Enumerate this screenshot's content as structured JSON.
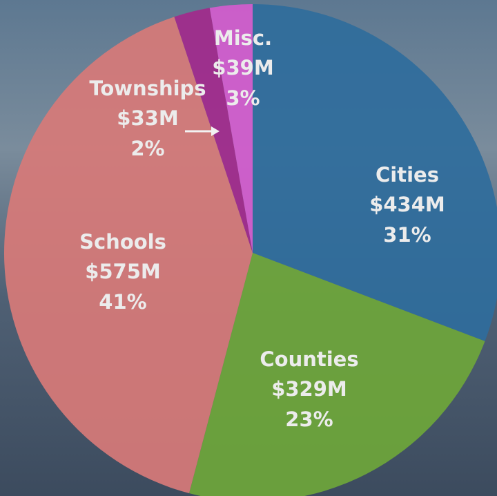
{
  "chart_data": {
    "type": "pie",
    "categories": [
      "Cities",
      "Counties",
      "Schools",
      "Townships",
      "Misc."
    ],
    "values": [
      434,
      329,
      575,
      33,
      39
    ],
    "value_labels": [
      "$434M",
      "$329M",
      "$575M",
      "$33M",
      "$39M"
    ],
    "percent_labels": [
      "31%",
      "23%",
      "41%",
      "2%",
      "3%"
    ],
    "colors": [
      "#2f6d9c",
      "#6ea63a",
      "#d67a78",
      "#a12a8c",
      "#d35ccd"
    ]
  }
}
